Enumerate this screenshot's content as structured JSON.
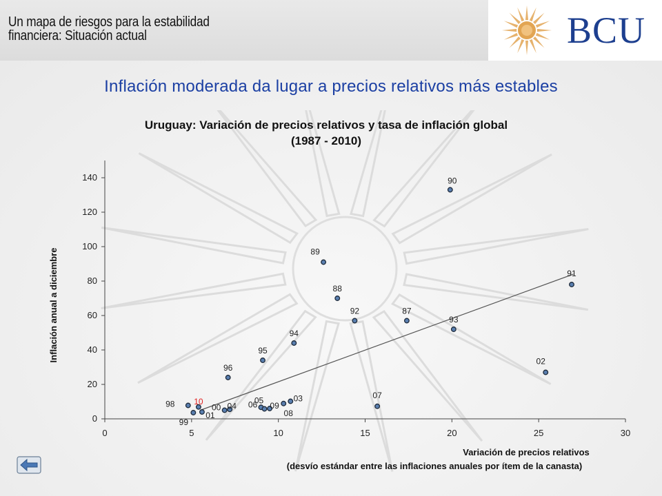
{
  "slide": {
    "title_line1": "Un mapa de riesgos para la estabilidad",
    "title_line2": "financiera: Situación actual",
    "logo_text": "BCU",
    "headline": "Inflación moderada da lugar a precios relativos más estables"
  },
  "colors": {
    "headline": "#1b3fa3",
    "logo": "#1d3f8f",
    "sun": "#e2a553",
    "point_fill": "#5a7fb0",
    "highlight_label": "#e02020"
  },
  "icons": {
    "back": "left-arrow-icon",
    "logo": "sun-icon"
  },
  "chart_data": {
    "type": "scatter",
    "title_line1": "Uruguay: Variación de precios relativos y tasa de inflación global",
    "title_line2": "(1987 - 2010)",
    "xlabel_line1": "Variación de precios relativos",
    "xlabel_line2": "(desvío estándar entre las inflaciones anuales por ítem de la canasta)",
    "ylabel": "Inflación anual a diciembre",
    "xlim": [
      0,
      30
    ],
    "ylim": [
      0,
      140
    ],
    "x_ticks": [
      "0",
      "5",
      "10",
      "15",
      "20",
      "25",
      "30"
    ],
    "y_ticks": [
      "0",
      "20",
      "40",
      "60",
      "80",
      "100",
      "120",
      "140"
    ],
    "grid": false,
    "points": [
      {
        "label": "87",
        "x": 17.4,
        "y": 57
      },
      {
        "label": "88",
        "x": 13.4,
        "y": 70
      },
      {
        "label": "89",
        "x": 12.6,
        "y": 91
      },
      {
        "label": "90",
        "x": 19.9,
        "y": 133
      },
      {
        "label": "91",
        "x": 26.9,
        "y": 78
      },
      {
        "label": "92",
        "x": 14.4,
        "y": 57
      },
      {
        "label": "93",
        "x": 20.1,
        "y": 52
      },
      {
        "label": "94",
        "x": 10.9,
        "y": 44
      },
      {
        "label": "95",
        "x": 9.1,
        "y": 34
      },
      {
        "label": "96",
        "x": 7.1,
        "y": 24
      },
      {
        "label": "98",
        "x": 4.8,
        "y": 7.8
      },
      {
        "label": "99",
        "x": 5.1,
        "y": 3.6
      },
      {
        "label": "00",
        "x": 6.9,
        "y": 5
      },
      {
        "label": "01",
        "x": 5.6,
        "y": 4
      },
      {
        "label": "02",
        "x": 25.4,
        "y": 27
      },
      {
        "label": "03",
        "x": 10.7,
        "y": 10.2
      },
      {
        "label": "04",
        "x": 7.2,
        "y": 5.5
      },
      {
        "label": "05",
        "x": 9.0,
        "y": 6.7
      },
      {
        "label": "06",
        "x": 9.2,
        "y": 5.8
      },
      {
        "label": "07",
        "x": 15.7,
        "y": 7.3
      },
      {
        "label": "08",
        "x": 10.3,
        "y": 8.9
      },
      {
        "label": "09",
        "x": 9.5,
        "y": 6
      },
      {
        "label": "10",
        "x": 5.4,
        "y": 6.9,
        "highlight": true
      }
    ],
    "trendline": {
      "x": [
        5.5,
        27
      ],
      "y": [
        5,
        84
      ]
    }
  }
}
